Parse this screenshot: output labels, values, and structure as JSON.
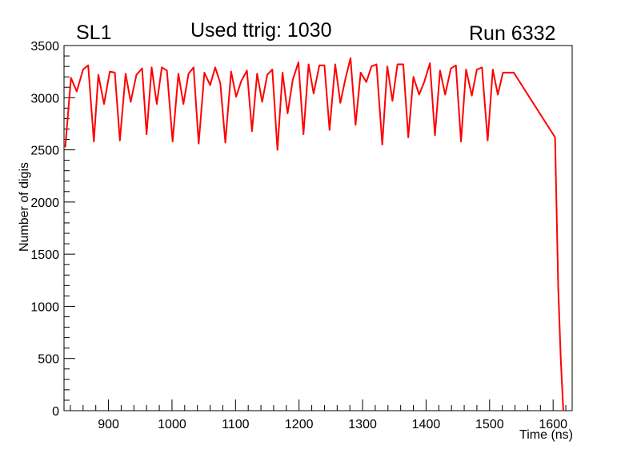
{
  "chart_data": {
    "type": "line",
    "texts": {
      "left": "SL1",
      "center": "Used ttrig: 1030",
      "right": "Run 6332"
    },
    "xlabel": "Time (ns)",
    "ylabel": "Number of digis",
    "xlim": [
      830,
      1630
    ],
    "ylim": [
      0,
      3500
    ],
    "xticks": [
      900,
      1000,
      1100,
      1200,
      1300,
      1400,
      1500,
      1600
    ],
    "yticks": [
      0,
      500,
      1000,
      1500,
      2000,
      2500,
      3000,
      3500
    ],
    "grid": false,
    "line_color": "#ff0000",
    "series": [
      {
        "points": [
          [
            832,
            2530
          ],
          [
            841,
            3190
          ],
          [
            850,
            3060
          ],
          [
            860,
            3270
          ],
          [
            868,
            3310
          ],
          [
            877,
            2580
          ],
          [
            884,
            3220
          ],
          [
            893,
            2940
          ],
          [
            902,
            3250
          ],
          [
            910,
            3240
          ],
          [
            918,
            2590
          ],
          [
            927,
            3230
          ],
          [
            935,
            2960
          ],
          [
            944,
            3220
          ],
          [
            953,
            3280
          ],
          [
            960,
            2650
          ],
          [
            968,
            3290
          ],
          [
            976,
            2940
          ],
          [
            984,
            3290
          ],
          [
            992,
            3260
          ],
          [
            1001,
            2580
          ],
          [
            1010,
            3230
          ],
          [
            1018,
            2940
          ],
          [
            1026,
            3230
          ],
          [
            1034,
            3290
          ],
          [
            1042,
            2560
          ],
          [
            1051,
            3240
          ],
          [
            1060,
            3120
          ],
          [
            1068,
            3290
          ],
          [
            1076,
            3140
          ],
          [
            1084,
            2570
          ],
          [
            1093,
            3250
          ],
          [
            1101,
            3010
          ],
          [
            1109,
            3160
          ],
          [
            1118,
            3260
          ],
          [
            1126,
            2680
          ],
          [
            1134,
            3230
          ],
          [
            1142,
            2960
          ],
          [
            1150,
            3220
          ],
          [
            1158,
            3270
          ],
          [
            1166,
            2500
          ],
          [
            1174,
            3240
          ],
          [
            1182,
            2850
          ],
          [
            1190,
            3170
          ],
          [
            1199,
            3340
          ],
          [
            1207,
            2650
          ],
          [
            1215,
            3320
          ],
          [
            1223,
            3040
          ],
          [
            1232,
            3310
          ],
          [
            1240,
            3310
          ],
          [
            1248,
            2690
          ],
          [
            1257,
            3320
          ],
          [
            1265,
            2950
          ],
          [
            1273,
            3180
          ],
          [
            1281,
            3380
          ],
          [
            1289,
            2740
          ],
          [
            1297,
            3240
          ],
          [
            1306,
            3150
          ],
          [
            1314,
            3300
          ],
          [
            1322,
            3320
          ],
          [
            1331,
            2550
          ],
          [
            1339,
            3300
          ],
          [
            1347,
            2970
          ],
          [
            1355,
            3320
          ],
          [
            1364,
            3320
          ],
          [
            1372,
            2620
          ],
          [
            1380,
            3200
          ],
          [
            1389,
            3030
          ],
          [
            1397,
            3150
          ],
          [
            1406,
            3330
          ],
          [
            1414,
            2640
          ],
          [
            1422,
            3260
          ],
          [
            1430,
            3030
          ],
          [
            1439,
            3280
          ],
          [
            1447,
            3310
          ],
          [
            1455,
            2580
          ],
          [
            1463,
            3270
          ],
          [
            1472,
            3020
          ],
          [
            1480,
            3270
          ],
          [
            1488,
            3290
          ],
          [
            1497,
            2590
          ],
          [
            1505,
            3270
          ],
          [
            1513,
            3030
          ],
          [
            1521,
            3240
          ],
          [
            1538,
            3240
          ],
          [
            1603,
            2620
          ],
          [
            1608,
            1200
          ],
          [
            1612,
            500
          ],
          [
            1616,
            0
          ]
        ]
      }
    ]
  }
}
